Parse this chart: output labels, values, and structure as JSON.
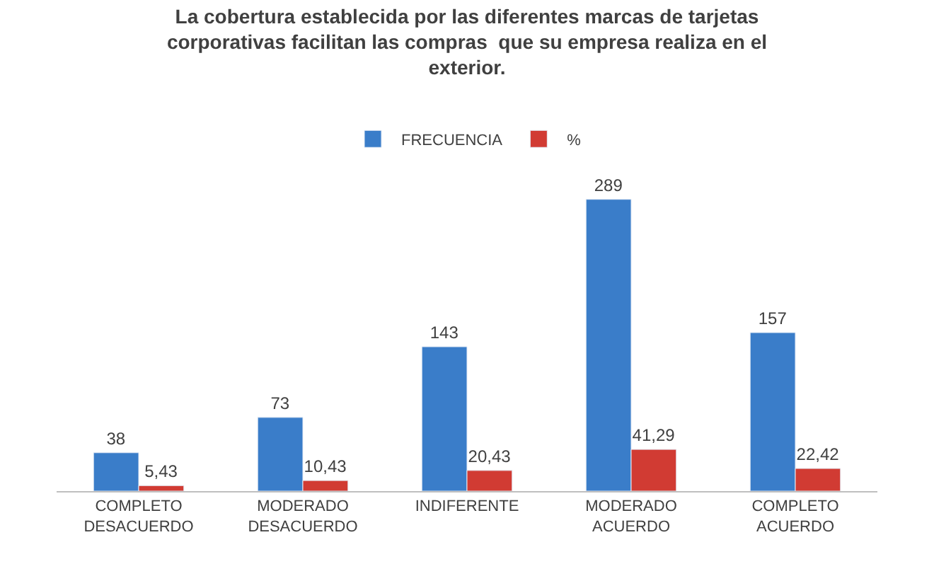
{
  "chart_data": {
    "type": "bar",
    "title": "La cobertura establecida por las diferentes marcas de tarjetas corporativas facilitan las compras  que su empresa realiza en el exterior.",
    "categories": [
      "COMPLETO DESACUERDO",
      "MODERADO DESACUERDO",
      "INDIFERENTE",
      "MODERADO ACUERDO",
      "COMPLETO ACUERDO"
    ],
    "legend": "top",
    "series": [
      {
        "name": "FRECUENCIA",
        "color": "#3a7dc9",
        "values": [
          38,
          73,
          143,
          289,
          157
        ],
        "value_labels": [
          "38",
          "73",
          "143",
          "289",
          "157"
        ]
      },
      {
        "name": "%",
        "color": "#d13b33",
        "values": [
          5.43,
          10.43,
          20.43,
          41.29,
          22.42
        ],
        "value_labels": [
          "5,43",
          "10,43",
          "20,43",
          "41,29",
          "22,42"
        ]
      }
    ]
  }
}
